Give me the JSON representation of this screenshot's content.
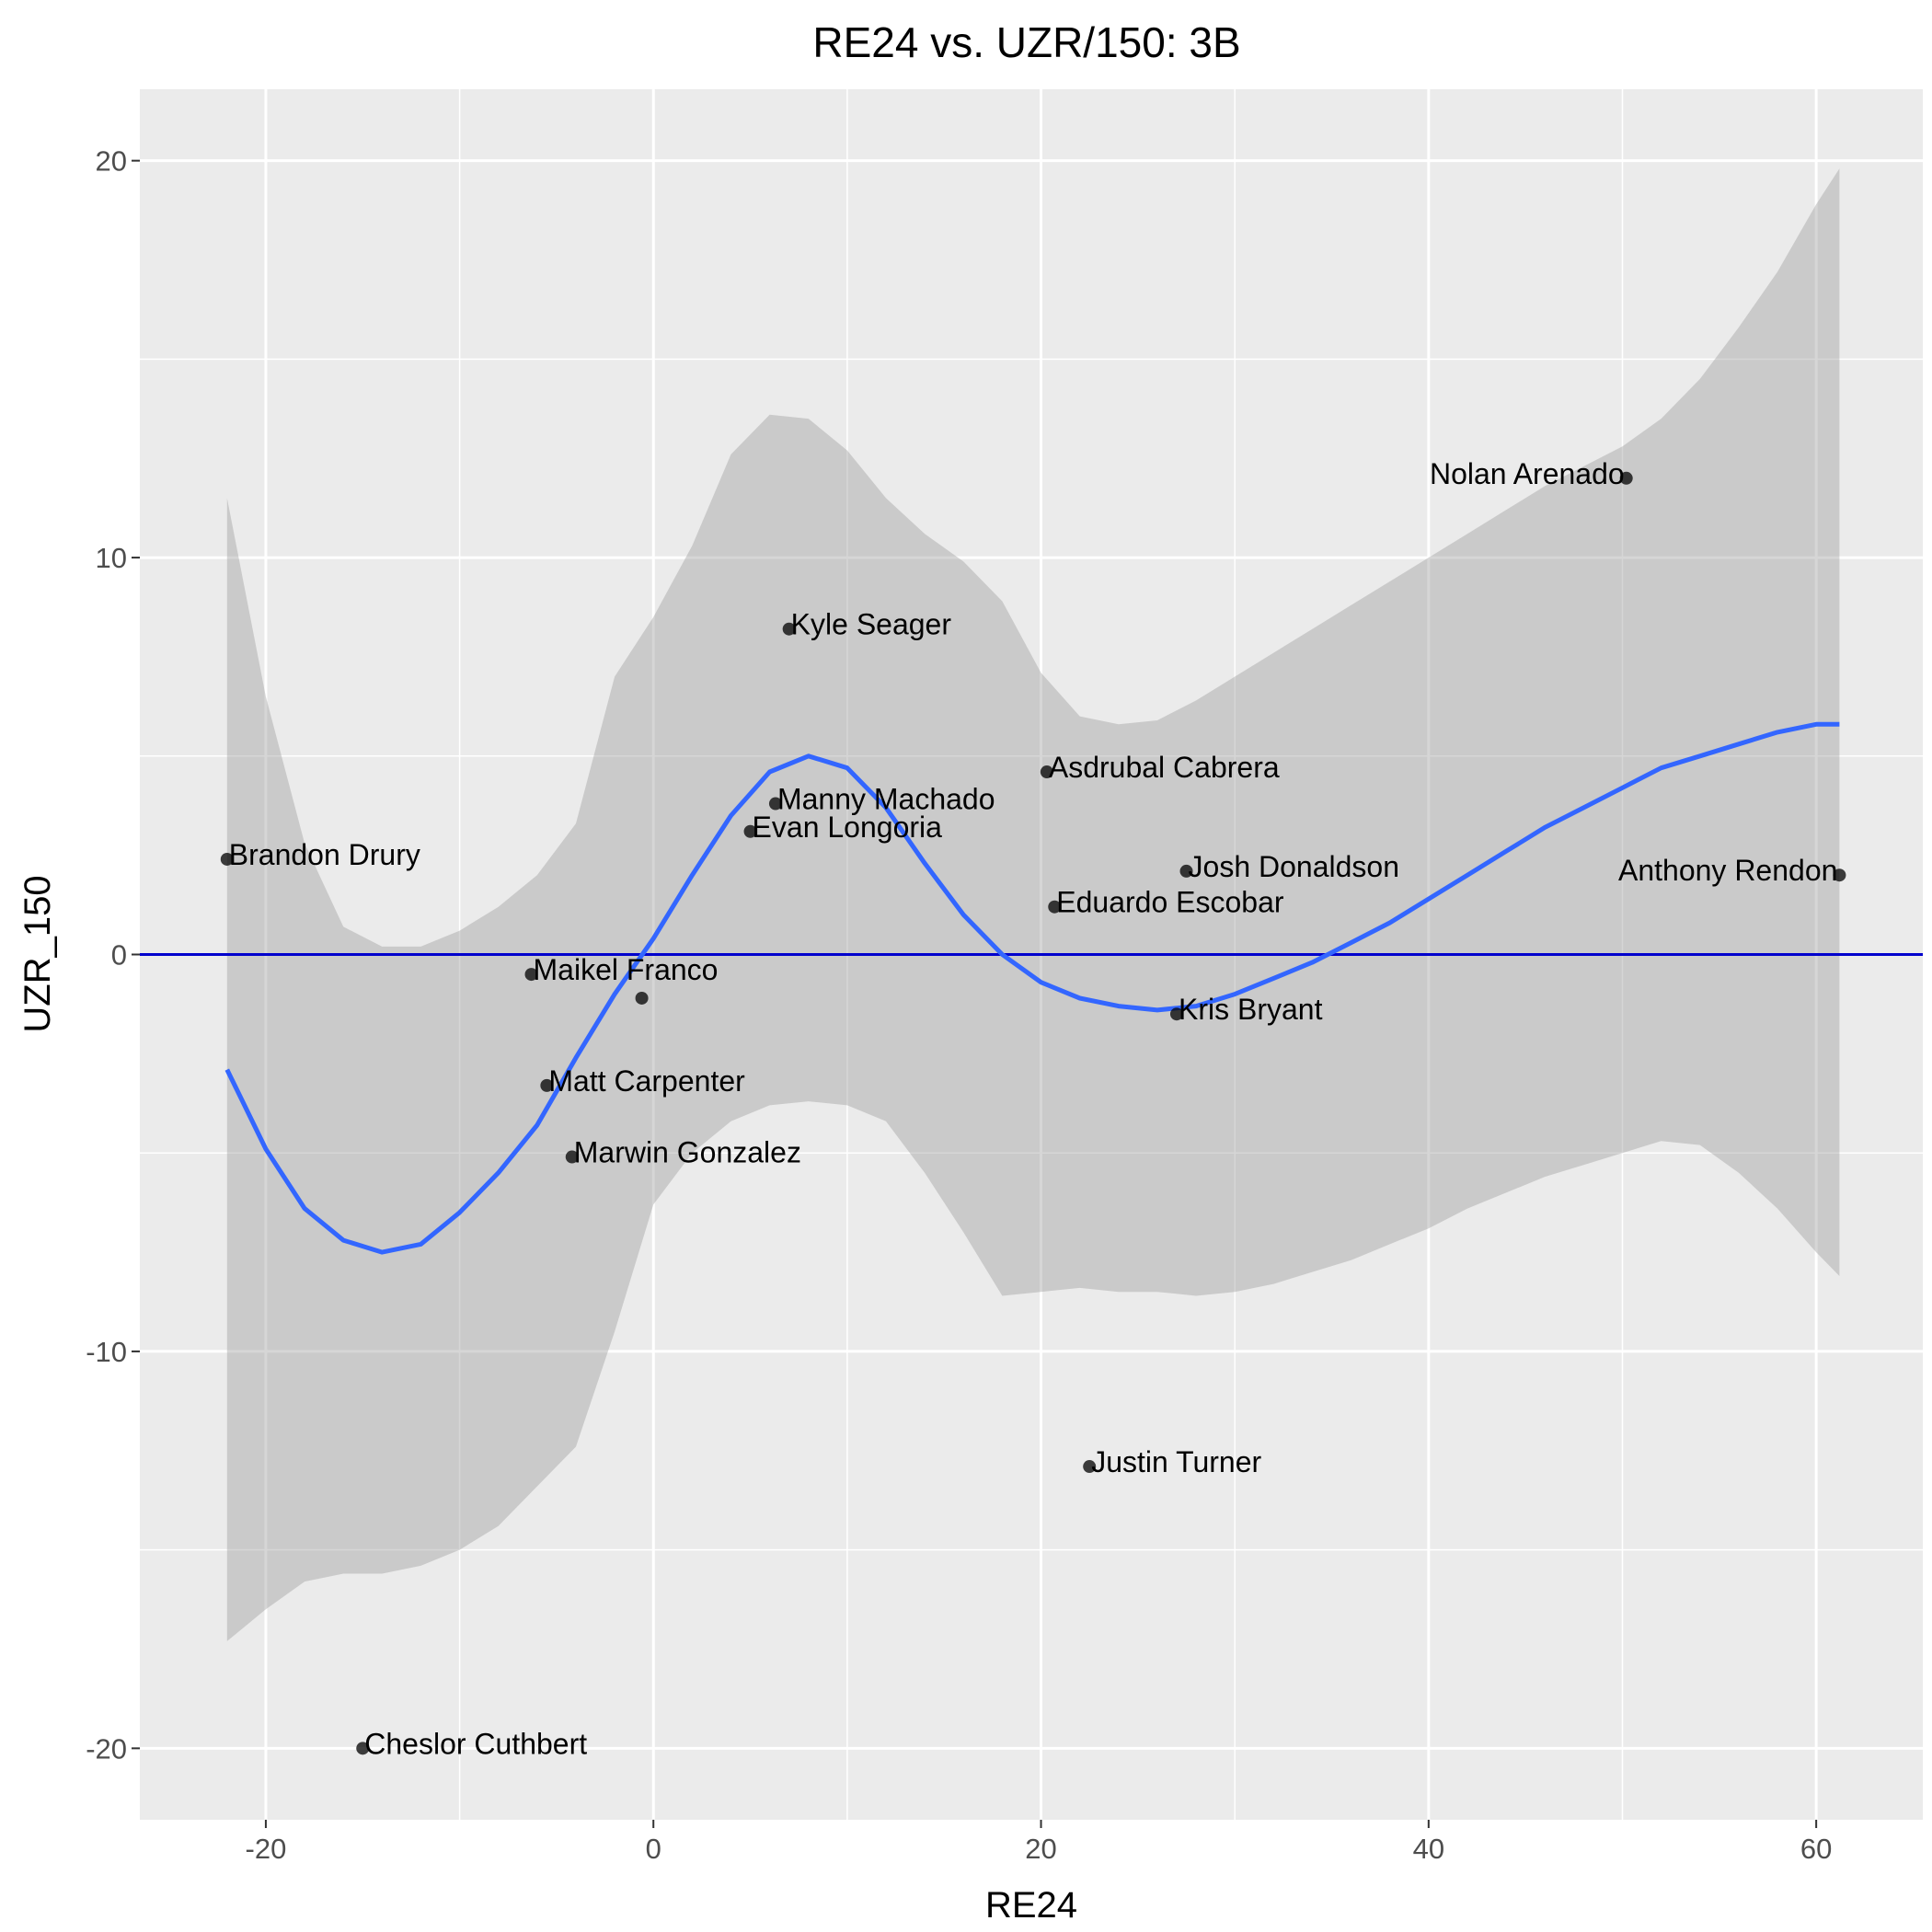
{
  "chart_data": {
    "type": "scatter",
    "title": "RE24 vs. UZR/150: 3B",
    "xlabel": "RE24",
    "ylabel": "UZR_150",
    "xlim": [
      -26.5,
      65.5
    ],
    "ylim": [
      -21.8,
      21.8
    ],
    "x_ticks": [
      -20,
      0,
      20,
      40,
      60
    ],
    "y_ticks": [
      -20,
      -10,
      0,
      10,
      20
    ],
    "x_tick_labels": [
      "-20",
      "0",
      "20",
      "40",
      "60"
    ],
    "y_tick_labels": [
      "-20",
      "-10",
      "0",
      "10",
      "20"
    ],
    "x_minor": [
      -30,
      -10,
      10,
      30,
      50,
      70
    ],
    "y_minor": [
      -25,
      -15,
      -5,
      5,
      15,
      25
    ],
    "grid": true,
    "background": "#ebebeb",
    "hline": {
      "y": 0,
      "color": "#0000cd"
    },
    "points": [
      {
        "name": "Brandon Drury",
        "x": -22.0,
        "y": 2.4
      },
      {
        "name": "Cheslor Cuthbert",
        "x": -15.0,
        "y": -20.0
      },
      {
        "name": "Maikel Franco",
        "x": -6.3,
        "y": -0.5
      },
      {
        "name": "Matt Carpenter",
        "x": -5.5,
        "y": -3.3
      },
      {
        "name": "Marwin Gonzalez",
        "x": -4.2,
        "y": -5.1
      },
      {
        "name": "",
        "x": -0.6,
        "y": -1.1
      },
      {
        "name": "Evan Longoria",
        "x": 5.0,
        "y": 3.1
      },
      {
        "name": "Manny Machado",
        "x": 6.3,
        "y": 3.8
      },
      {
        "name": "Kyle Seager",
        "x": 7.0,
        "y": 8.2
      },
      {
        "name": "Asdrubal Cabrera",
        "x": 20.3,
        "y": 4.6
      },
      {
        "name": "Eduardo Escobar",
        "x": 20.7,
        "y": 1.2
      },
      {
        "name": "Justin Turner",
        "x": 22.5,
        "y": -12.9
      },
      {
        "name": "Kris Bryant",
        "x": 27.0,
        "y": -1.5
      },
      {
        "name": "Josh Donaldson",
        "x": 27.5,
        "y": 2.1
      },
      {
        "name": "Nolan Arenado",
        "x": 50.2,
        "y": 12.0
      },
      {
        "name": "Anthony Rendon",
        "x": 61.2,
        "y": 2.0
      }
    ],
    "smooth": {
      "color": "#3366ff",
      "band_color": "#999999",
      "x": [
        -22,
        -20,
        -18,
        -16,
        -14,
        -12,
        -10,
        -8,
        -6,
        -4,
        -2,
        0,
        2,
        4,
        6,
        8,
        10,
        12,
        14,
        16,
        18,
        20,
        22,
        24,
        26,
        28,
        30,
        32,
        34,
        36,
        38,
        40,
        42,
        44,
        46,
        48,
        50,
        52,
        54,
        56,
        58,
        60,
        61.2
      ],
      "y": [
        -2.9,
        -4.9,
        -6.4,
        -7.2,
        -7.5,
        -7.3,
        -6.5,
        -5.5,
        -4.3,
        -2.6,
        -1.0,
        0.4,
        2.0,
        3.5,
        4.6,
        5.0,
        4.7,
        3.7,
        2.3,
        1.0,
        0.0,
        -0.7,
        -1.1,
        -1.3,
        -1.4,
        -1.3,
        -1.0,
        -0.6,
        -0.2,
        0.3,
        0.8,
        1.4,
        2.0,
        2.6,
        3.2,
        3.7,
        4.2,
        4.7,
        5.0,
        5.3,
        5.6,
        5.8,
        5.8
      ],
      "ymin": [
        -17.3,
        -16.5,
        -15.8,
        -15.6,
        -15.6,
        -15.4,
        -15.0,
        -14.4,
        -13.4,
        -12.4,
        -9.5,
        -6.3,
        -5.0,
        -4.2,
        -3.8,
        -3.7,
        -3.8,
        -4.2,
        -5.5,
        -7.0,
        -8.6,
        -8.5,
        -8.4,
        -8.5,
        -8.5,
        -8.6,
        -8.5,
        -8.3,
        -8.0,
        -7.7,
        -7.3,
        -6.9,
        -6.4,
        -6.0,
        -5.6,
        -5.3,
        -5.0,
        -4.7,
        -4.8,
        -5.5,
        -6.4,
        -7.5,
        -8.1
      ],
      "ymax": [
        11.5,
        6.5,
        2.8,
        0.7,
        0.2,
        0.2,
        0.6,
        1.2,
        2.0,
        3.3,
        7.0,
        8.5,
        10.3,
        12.6,
        13.6,
        13.5,
        12.7,
        11.5,
        10.6,
        9.9,
        8.9,
        7.1,
        6.0,
        5.8,
        5.9,
        6.4,
        7.0,
        7.6,
        8.2,
        8.8,
        9.4,
        10.0,
        10.6,
        11.2,
        11.8,
        12.3,
        12.8,
        13.5,
        14.5,
        15.8,
        17.2,
        18.9,
        19.8
      ]
    }
  }
}
